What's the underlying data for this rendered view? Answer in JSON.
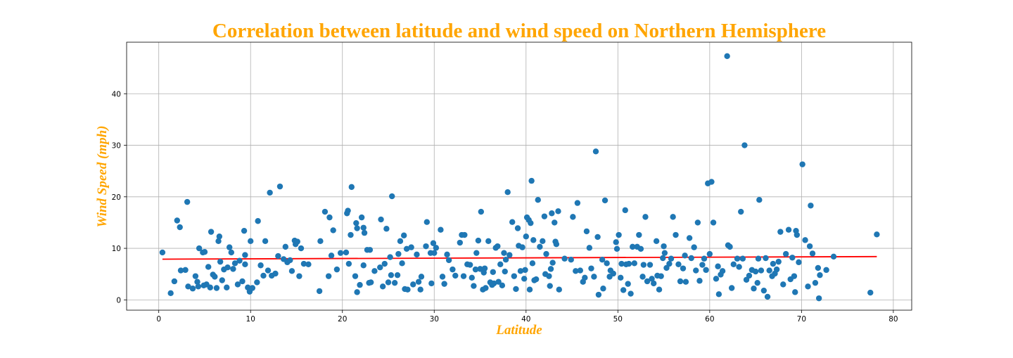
{
  "chart_data": {
    "type": "scatter",
    "title": "Correlation between latitude and wind speed on Northern Hemisphere",
    "xlabel": "Latitude",
    "ylabel": "Wind Speed (mph)",
    "xlim": [
      -3.5,
      82
    ],
    "ylim": [
      -2,
      50
    ],
    "xticks": [
      0,
      10,
      20,
      30,
      40,
      50,
      60,
      70,
      80
    ],
    "yticks": [
      0,
      10,
      20,
      30,
      40
    ],
    "grid": true,
    "colors": {
      "title": "#FFA500",
      "axis_labels": "#FFA500",
      "points": "#1f77b4",
      "regression": "#ff0000"
    },
    "regression_line": {
      "x": [
        0.4,
        78.2
      ],
      "y": [
        7.9,
        8.4
      ]
    },
    "points": [
      [
        0.4,
        9.2
      ],
      [
        1.3,
        1.3
      ],
      [
        1.7,
        3.6
      ],
      [
        2.0,
        15.4
      ],
      [
        2.3,
        14.1
      ],
      [
        2.4,
        5.7
      ],
      [
        2.9,
        5.8
      ],
      [
        3.1,
        19.0
      ],
      [
        3.2,
        2.6
      ],
      [
        3.7,
        2.2
      ],
      [
        4.0,
        4.6
      ],
      [
        4.2,
        3.5
      ],
      [
        4.3,
        2.6
      ],
      [
        4.4,
        10.0
      ],
      [
        4.8,
        9.2
      ],
      [
        5.0,
        9.3
      ],
      [
        5.2,
        3.0
      ],
      [
        5.4,
        6.4
      ],
      [
        5.6,
        2.4
      ],
      [
        5.7,
        13.2
      ],
      [
        5.9,
        4.9
      ],
      [
        6.1,
        4.5
      ],
      [
        6.3,
        2.3
      ],
      [
        6.5,
        11.4
      ],
      [
        6.6,
        12.3
      ],
      [
        6.7,
        7.4
      ],
      [
        7.1,
        5.9
      ],
      [
        7.4,
        2.4
      ],
      [
        7.5,
        6.3
      ],
      [
        7.7,
        10.2
      ],
      [
        7.9,
        9.2
      ],
      [
        8.1,
        6.0
      ],
      [
        8.3,
        7.1
      ],
      [
        8.6,
        3.0
      ],
      [
        8.8,
        7.6
      ],
      [
        9.1,
        3.6
      ],
      [
        9.3,
        13.4
      ],
      [
        9.4,
        8.7
      ],
      [
        9.4,
        6.9
      ],
      [
        9.7,
        2.4
      ],
      [
        9.9,
        1.6
      ],
      [
        10.0,
        11.4
      ],
      [
        10.2,
        2.3
      ],
      [
        10.7,
        3.4
      ],
      [
        10.8,
        15.3
      ],
      [
        11.1,
        6.7
      ],
      [
        11.4,
        4.7
      ],
      [
        11.6,
        11.4
      ],
      [
        11.9,
        5.7
      ],
      [
        12.1,
        20.8
      ],
      [
        12.3,
        4.7
      ],
      [
        13.0,
        8.5
      ],
      [
        13.2,
        22.0
      ],
      [
        13.6,
        7.9
      ],
      [
        13.8,
        10.3
      ],
      [
        14.0,
        7.3
      ],
      [
        14.3,
        7.7
      ],
      [
        14.5,
        5.6
      ],
      [
        14.8,
        11.5
      ],
      [
        14.9,
        10.8
      ],
      [
        15.1,
        11.3
      ],
      [
        15.3,
        4.6
      ],
      [
        15.5,
        10.0
      ],
      [
        15.8,
        7.0
      ],
      [
        17.5,
        1.7
      ],
      [
        17.6,
        11.4
      ],
      [
        18.1,
        17.1
      ],
      [
        18.5,
        4.6
      ],
      [
        18.6,
        16.0
      ],
      [
        18.8,
        8.6
      ],
      [
        19.0,
        13.5
      ],
      [
        19.4,
        5.9
      ],
      [
        19.8,
        9.1
      ],
      [
        20.4,
        9.2
      ],
      [
        20.5,
        16.8
      ],
      [
        20.6,
        17.3
      ],
      [
        20.7,
        7.0
      ],
      [
        20.9,
        12.6
      ],
      [
        21.0,
        21.9
      ],
      [
        21.4,
        4.6
      ],
      [
        21.5,
        14.9
      ],
      [
        21.6,
        13.9
      ],
      [
        21.6,
        1.5
      ],
      [
        21.9,
        2.9
      ],
      [
        22.1,
        16.0
      ],
      [
        22.3,
        6.7
      ],
      [
        22.3,
        14.0
      ],
      [
        22.4,
        13.0
      ],
      [
        22.7,
        9.7
      ],
      [
        22.9,
        3.3
      ],
      [
        23.0,
        9.7
      ],
      [
        23.1,
        3.4
      ],
      [
        24.1,
        6.3
      ],
      [
        24.2,
        15.6
      ],
      [
        24.4,
        2.6
      ],
      [
        24.6,
        7.0
      ],
      [
        24.8,
        13.8
      ],
      [
        25.0,
        3.4
      ],
      [
        25.2,
        8.3
      ],
      [
        25.3,
        4.8
      ],
      [
        25.4,
        20.1
      ],
      [
        25.7,
        3.3
      ],
      [
        26.0,
        4.8
      ],
      [
        26.3,
        11.4
      ],
      [
        26.5,
        7.1
      ],
      [
        26.7,
        12.5
      ],
      [
        26.8,
        2.1
      ],
      [
        27.0,
        9.9
      ],
      [
        27.1,
        2.0
      ],
      [
        27.5,
        10.2
      ],
      [
        27.7,
        3.0
      ],
      [
        28.1,
        8.8
      ],
      [
        28.3,
        3.5
      ],
      [
        28.5,
        2.0
      ],
      [
        28.6,
        4.5
      ],
      [
        29.1,
        10.4
      ],
      [
        29.2,
        15.1
      ],
      [
        29.6,
        9.1
      ],
      [
        29.7,
        3.2
      ],
      [
        29.9,
        11.0
      ],
      [
        30.0,
        9.1
      ],
      [
        30.2,
        10.1
      ],
      [
        30.7,
        13.6
      ],
      [
        30.9,
        4.5
      ],
      [
        31.4,
        8.8
      ],
      [
        31.6,
        7.7
      ],
      [
        32.0,
        5.9
      ],
      [
        32.3,
        4.7
      ],
      [
        32.8,
        11.1
      ],
      [
        33.0,
        12.6
      ],
      [
        33.2,
        4.6
      ],
      [
        33.3,
        12.6
      ],
      [
        33.6,
        6.9
      ],
      [
        33.9,
        6.8
      ],
      [
        34.1,
        4.3
      ],
      [
        34.3,
        2.7
      ],
      [
        34.5,
        5.9
      ],
      [
        34.6,
        9.1
      ],
      [
        34.8,
        11.5
      ],
      [
        35.0,
        6.0
      ],
      [
        35.1,
        17.1
      ],
      [
        35.3,
        2.0
      ],
      [
        35.4,
        5.3
      ],
      [
        35.5,
        6.1
      ],
      [
        35.6,
        2.3
      ],
      [
        35.9,
        11.4
      ],
      [
        36.1,
        3.4
      ],
      [
        36.4,
        5.4
      ],
      [
        36.5,
        3.2
      ],
      [
        36.7,
        10.1
      ],
      [
        36.9,
        10.4
      ],
      [
        37.0,
        3.5
      ],
      [
        37.2,
        6.9
      ],
      [
        37.4,
        2.8
      ],
      [
        37.6,
        9.1
      ],
      [
        37.7,
        5.5
      ],
      [
        37.8,
        7.8
      ],
      [
        38.0,
        20.9
      ],
      [
        38.2,
        8.7
      ],
      [
        38.5,
        15.1
      ],
      [
        38.7,
        4.6
      ],
      [
        38.9,
        2.1
      ],
      [
        39.1,
        13.9
      ],
      [
        39.2,
        10.5
      ],
      [
        39.4,
        5.6
      ],
      [
        39.6,
        10.2
      ],
      [
        39.8,
        4.1
      ],
      [
        39.9,
        5.8
      ],
      [
        40.0,
        12.3
      ],
      [
        40.1,
        16.0
      ],
      [
        40.3,
        15.5
      ],
      [
        40.4,
        2.0
      ],
      [
        40.5,
        14.9
      ],
      [
        40.6,
        23.1
      ],
      [
        40.7,
        7.1
      ],
      [
        40.8,
        11.6
      ],
      [
        40.9,
        3.8
      ],
      [
        41.1,
        4.0
      ],
      [
        41.3,
        19.4
      ],
      [
        41.5,
        10.3
      ],
      [
        41.8,
        11.4
      ],
      [
        42.0,
        16.2
      ],
      [
        42.1,
        5.0
      ],
      [
        42.2,
        8.9
      ],
      [
        42.5,
        4.6
      ],
      [
        42.7,
        6.0
      ],
      [
        42.8,
        16.8
      ],
      [
        42.9,
        7.2
      ],
      [
        43.1,
        15.0
      ],
      [
        43.2,
        11.3
      ],
      [
        43.3,
        10.8
      ],
      [
        43.5,
        17.2
      ],
      [
        43.6,
        2.0
      ],
      [
        44.9,
        7.8
      ],
      [
        45.1,
        16.1
      ],
      [
        45.4,
        5.6
      ],
      [
        45.6,
        18.8
      ],
      [
        45.9,
        5.7
      ],
      [
        46.2,
        3.5
      ],
      [
        46.4,
        4.3
      ],
      [
        46.6,
        13.3
      ],
      [
        46.9,
        10.1
      ],
      [
        47.1,
        6.1
      ],
      [
        47.4,
        4.5
      ],
      [
        47.6,
        28.8
      ],
      [
        47.8,
        12.2
      ],
      [
        47.9,
        1.0
      ],
      [
        48.3,
        7.8
      ],
      [
        48.4,
        2.2
      ],
      [
        48.6,
        19.3
      ],
      [
        48.8,
        7.1
      ],
      [
        49.1,
        4.5
      ],
      [
        49.2,
        5.7
      ],
      [
        49.5,
        5.1
      ],
      [
        49.8,
        11.2
      ],
      [
        49.9,
        9.9
      ],
      [
        50.1,
        12.6
      ],
      [
        50.3,
        4.3
      ],
      [
        50.4,
        7.0
      ],
      [
        50.6,
        1.9
      ],
      [
        50.8,
        17.4
      ],
      [
        50.9,
        6.9
      ],
      [
        51.1,
        3.1
      ],
      [
        51.2,
        7.0
      ],
      [
        51.4,
        1.2
      ],
      [
        51.6,
        10.3
      ],
      [
        51.8,
        7.1
      ],
      [
        52.1,
        10.3
      ],
      [
        52.3,
        12.6
      ],
      [
        52.5,
        9.9
      ],
      [
        52.7,
        4.5
      ],
      [
        52.8,
        6.8
      ],
      [
        53.0,
        16.1
      ],
      [
        53.2,
        3.6
      ],
      [
        53.5,
        6.8
      ],
      [
        53.7,
        4.1
      ],
      [
        53.9,
        3.2
      ],
      [
        54.2,
        11.4
      ],
      [
        54.3,
        4.7
      ],
      [
        54.5,
        2.0
      ],
      [
        54.7,
        4.6
      ],
      [
        54.9,
        8.1
      ],
      [
        55.1,
        9.1
      ],
      [
        55.3,
        6.2
      ],
      [
        55.6,
        7.0
      ],
      [
        55.8,
        8.0
      ],
      [
        56.0,
        16.1
      ],
      [
        56.3,
        12.6
      ],
      [
        56.6,
        6.9
      ],
      [
        56.8,
        3.6
      ],
      [
        57.1,
        6.1
      ],
      [
        57.4,
        3.5
      ],
      [
        57.8,
        12.0
      ],
      [
        58.0,
        8.1
      ],
      [
        58.3,
        10.2
      ],
      [
        58.5,
        5.7
      ],
      [
        58.7,
        15.0
      ],
      [
        58.9,
        3.7
      ],
      [
        59.2,
        6.8
      ],
      [
        59.4,
        8.0
      ],
      [
        59.6,
        5.8
      ],
      [
        59.8,
        22.6
      ],
      [
        60.0,
        8.9
      ],
      [
        60.2,
        22.9
      ],
      [
        60.4,
        15.0
      ],
      [
        60.7,
        4.1
      ],
      [
        60.9,
        6.5
      ],
      [
        61.0,
        1.1
      ],
      [
        61.2,
        4.9
      ],
      [
        61.4,
        5.6
      ],
      [
        61.9,
        47.3
      ],
      [
        62.0,
        10.6
      ],
      [
        62.2,
        10.3
      ],
      [
        62.4,
        2.3
      ],
      [
        62.6,
        6.9
      ],
      [
        63.0,
        8.0
      ],
      [
        63.4,
        17.1
      ],
      [
        63.6,
        8.0
      ],
      [
        63.8,
        30.0
      ],
      [
        64.0,
        3.9
      ],
      [
        64.3,
        4.7
      ],
      [
        64.6,
        5.8
      ],
      [
        64.8,
        2.2
      ],
      [
        65.0,
        5.5
      ],
      [
        65.2,
        3.3
      ],
      [
        65.3,
        8.0
      ],
      [
        65.4,
        19.4
      ],
      [
        65.6,
        5.7
      ],
      [
        65.9,
        1.8
      ],
      [
        66.1,
        8.1
      ],
      [
        66.3,
        0.6
      ],
      [
        66.5,
        5.7
      ],
      [
        66.8,
        4.6
      ],
      [
        66.9,
        7.0
      ],
      [
        67.3,
        5.9
      ],
      [
        67.5,
        7.4
      ],
      [
        67.7,
        13.2
      ],
      [
        68.0,
        3.0
      ],
      [
        68.3,
        8.9
      ],
      [
        68.6,
        13.6
      ],
      [
        68.8,
        4.0
      ],
      [
        69.0,
        8.2
      ],
      [
        69.2,
        4.6
      ],
      [
        69.4,
        13.4
      ],
      [
        69.5,
        12.6
      ],
      [
        69.7,
        7.3
      ],
      [
        69.3,
        1.5
      ],
      [
        70.1,
        26.3
      ],
      [
        70.4,
        11.6
      ],
      [
        70.7,
        2.6
      ],
      [
        70.9,
        10.4
      ],
      [
        71.0,
        18.3
      ],
      [
        71.2,
        9.0
      ],
      [
        71.5,
        3.3
      ],
      [
        71.8,
        6.2
      ],
      [
        72.0,
        4.8
      ],
      [
        71.9,
        0.3
      ],
      [
        72.7,
        5.8
      ],
      [
        73.5,
        8.4
      ],
      [
        77.5,
        1.4
      ],
      [
        78.2,
        12.7
      ],
      [
        4.9,
        2.8
      ],
      [
        6.9,
        3.8
      ],
      [
        12.7,
        5.1
      ],
      [
        16.3,
        6.9
      ],
      [
        23.5,
        5.6
      ],
      [
        31.1,
        3.1
      ],
      [
        36.3,
        2.9
      ],
      [
        44.2,
        8.0
      ],
      [
        57.3,
        8.6
      ],
      [
        63.2,
        6.4
      ],
      [
        67.1,
        5.1
      ],
      [
        42.6,
        2.7
      ],
      [
        26.1,
        8.9
      ],
      [
        55.0,
        10.4
      ]
    ]
  }
}
